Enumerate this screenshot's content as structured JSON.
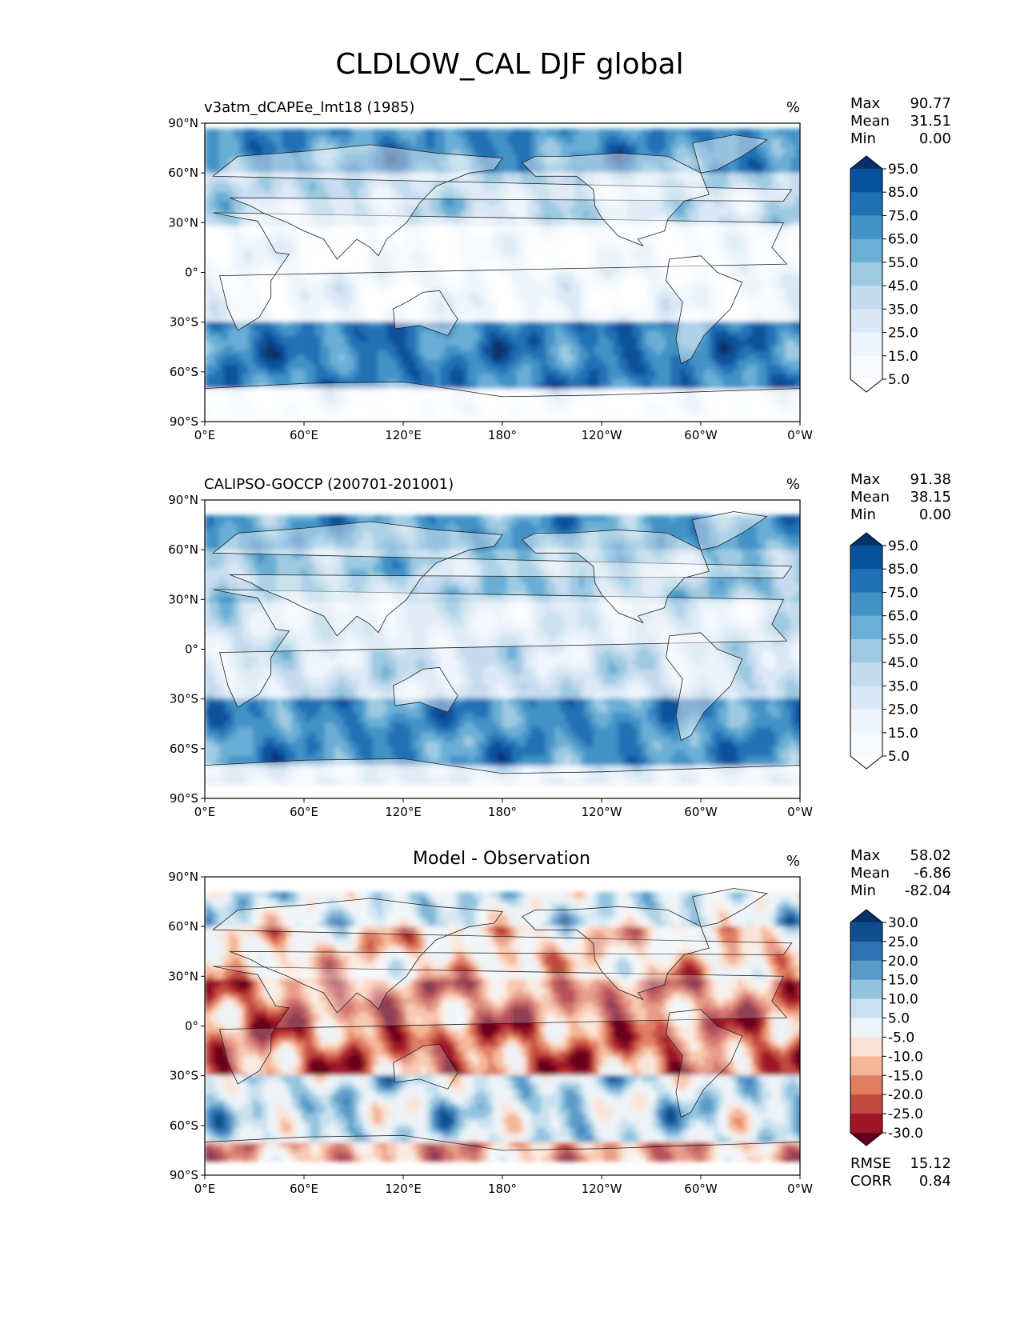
{
  "title": "CLDLOW_CAL DJF global",
  "stat_labels": {
    "max": "Max",
    "mean": "Mean",
    "min": "Min",
    "rmse": "RMSE",
    "corr": "CORR"
  },
  "chart_data": [
    {
      "type": "heatmap",
      "panel": "test",
      "title_left": "v3atm_dCAPEe_lmt18 (1985)",
      "title_center": "",
      "units": "%",
      "xlabel": "",
      "ylabel": "",
      "x_ticks": [
        "0°E",
        "60°E",
        "120°E",
        "180°",
        "120°W",
        "60°W",
        "0°W"
      ],
      "y_ticks": [
        "90°N",
        "60°N",
        "30°N",
        "0°",
        "30°S",
        "60°S",
        "90°S"
      ],
      "xlim": [
        0,
        360
      ],
      "ylim": [
        -90,
        90
      ],
      "stats": {
        "max": "90.77",
        "mean": "31.51",
        "min": "0.00"
      },
      "colorbar": {
        "levels": [
          "95.0",
          "85.0",
          "75.0",
          "65.0",
          "55.0",
          "45.0",
          "35.0",
          "25.0",
          "15.0",
          "5.0"
        ],
        "colors": [
          "#08306b",
          "#08519c",
          "#2171b5",
          "#4292c6",
          "#6baed6",
          "#9ecae1",
          "#c6dbef",
          "#dbe9f6",
          "#eef5fc",
          "#f7fbff",
          "#ffffff"
        ]
      },
      "description_zones": [
        {
          "lat": [
            60,
            88
          ],
          "value": 70
        },
        {
          "lat": [
            30,
            60
          ],
          "value": 40
        },
        {
          "lat": [
            -30,
            30
          ],
          "value": 15
        },
        {
          "lat": [
            -70,
            -30
          ],
          "value": 75
        },
        {
          "lat": [
            -88,
            -70
          ],
          "value": 10
        }
      ]
    },
    {
      "type": "heatmap",
      "panel": "reference",
      "title_left": "CALIPSO-GOCCP (200701-201001)",
      "title_center": "",
      "units": "%",
      "x_ticks": [
        "0°E",
        "60°E",
        "120°E",
        "180°",
        "120°W",
        "60°W",
        "0°W"
      ],
      "y_ticks": [
        "90°N",
        "60°N",
        "30°N",
        "0°",
        "30°S",
        "60°S",
        "90°S"
      ],
      "xlim": [
        0,
        360
      ],
      "ylim": [
        -90,
        90
      ],
      "stats": {
        "max": "91.38",
        "mean": "38.15",
        "min": "0.00"
      },
      "colorbar": {
        "levels": [
          "95.0",
          "85.0",
          "75.0",
          "65.0",
          "55.0",
          "45.0",
          "35.0",
          "25.0",
          "15.0",
          "5.0"
        ],
        "colors": [
          "#08306b",
          "#08519c",
          "#2171b5",
          "#4292c6",
          "#6baed6",
          "#9ecae1",
          "#c6dbef",
          "#dbe9f6",
          "#eef5fc",
          "#f7fbff",
          "#ffffff"
        ]
      },
      "description_zones": [
        {
          "lat": [
            60,
            82
          ],
          "value": 65
        },
        {
          "lat": [
            30,
            60
          ],
          "value": 50
        },
        {
          "lat": [
            -30,
            30
          ],
          "value": 35
        },
        {
          "lat": [
            -70,
            -30
          ],
          "value": 70
        },
        {
          "lat": [
            -82,
            -70
          ],
          "value": 30
        }
      ]
    },
    {
      "type": "heatmap",
      "panel": "difference",
      "title_left": "",
      "title_center": "Model - Observation",
      "units": "%",
      "x_ticks": [
        "0°E",
        "60°E",
        "120°E",
        "180°",
        "120°W",
        "60°W",
        "0°W"
      ],
      "y_ticks": [
        "90°N",
        "60°N",
        "30°N",
        "0°",
        "30°S",
        "60°S",
        "90°S"
      ],
      "xlim": [
        0,
        360
      ],
      "ylim": [
        -90,
        90
      ],
      "stats": {
        "max": "58.02",
        "mean": "-6.86",
        "min": "-82.04"
      },
      "error_stats": {
        "rmse": "15.12",
        "corr": "0.84"
      },
      "colorbar": {
        "levels": [
          "30.0",
          "25.0",
          "20.0",
          "15.0",
          "10.0",
          "5.0",
          "-5.0",
          "-10.0",
          "-15.0",
          "-20.0",
          "-25.0",
          "-30.0"
        ],
        "colors": [
          "#08306b",
          "#114d8c",
          "#2d73b3",
          "#5a9bc9",
          "#93c3df",
          "#c9e1ef",
          "#edf3f7",
          "#f9e4d8",
          "#f6b798",
          "#e07e62",
          "#c24840",
          "#a01628",
          "#67001f"
        ]
      },
      "description_zones": [
        {
          "lat": [
            60,
            82
          ],
          "value": 5
        },
        {
          "lat": [
            30,
            60
          ],
          "value": -8
        },
        {
          "lat": [
            -30,
            30
          ],
          "value": -18
        },
        {
          "lat": [
            -70,
            -30
          ],
          "value": 6
        },
        {
          "lat": [
            -82,
            -70
          ],
          "value": -15
        }
      ]
    }
  ]
}
